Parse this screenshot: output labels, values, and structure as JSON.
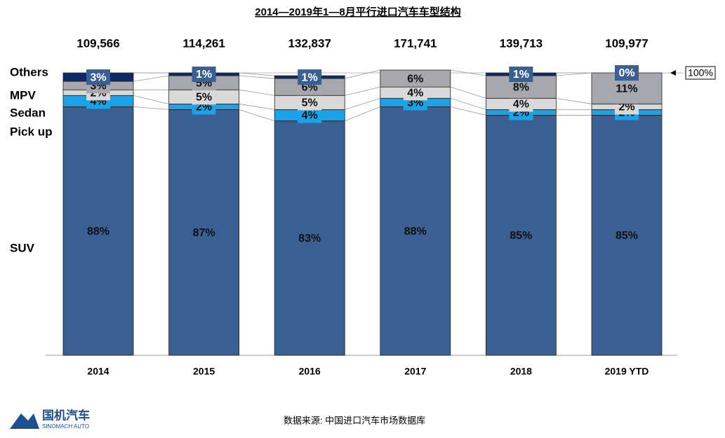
{
  "chart_data": {
    "type": "stacked-bar-100",
    "title": "2014—2019年1—8月平行进口汽车车型结构",
    "categories": [
      "2014",
      "2015",
      "2016",
      "2017",
      "2018",
      "2019 YTD"
    ],
    "totals": {
      "values": [
        109566,
        114261,
        132837,
        171741,
        139713,
        109977
      ],
      "value_labels": [
        "109,566",
        "114,261",
        "132,837",
        "171,741",
        "139,713",
        "109,977"
      ]
    },
    "series": [
      {
        "name": "SUV",
        "color": "#3a5f93",
        "values": [
          88,
          87,
          83,
          88,
          85,
          85
        ],
        "value_labels": [
          "88%",
          "87%",
          "83%",
          "88%",
          "85%",
          "85%"
        ]
      },
      {
        "name": "Pick up",
        "color": "#1aa3e8",
        "values": [
          4,
          2,
          4,
          3,
          2,
          2
        ],
        "value_labels": [
          "4%",
          "2%",
          "4%",
          "3%",
          "2%",
          "2%"
        ]
      },
      {
        "name": "Sedan",
        "color": "#d9d9d9",
        "values": [
          2,
          5,
          5,
          4,
          4,
          2
        ],
        "value_labels": [
          "2%",
          "5%",
          "5%",
          "4%",
          "4%",
          "2%"
        ]
      },
      {
        "name": "MPV",
        "color": "#a6a8ad",
        "values": [
          3,
          5,
          6,
          6,
          8,
          11
        ],
        "value_labels": [
          "3%",
          "5%",
          "6%",
          "6%",
          "8%",
          "11%"
        ]
      },
      {
        "name": "Others",
        "color": "#0d2a66",
        "values": [
          3,
          1,
          1,
          null,
          1,
          0
        ],
        "value_labels": [
          "3%",
          "1%",
          "1%",
          null,
          "1%",
          "0%"
        ]
      }
    ],
    "ylim": [
      0,
      100
    ],
    "reference": {
      "value": 100,
      "label": "100%"
    },
    "source": "数据来源: 中国进口汽车市场数据库",
    "logo": {
      "text": "国机汽车",
      "subtext": "SINOMACH AUTO"
    }
  }
}
